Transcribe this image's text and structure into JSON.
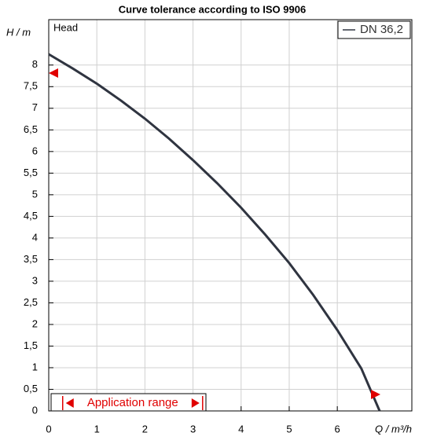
{
  "chart_data": {
    "type": "line",
    "title": "Curve tolerance according to ISO 9906",
    "y_label": "H / m",
    "x_label": "Q / m³/h",
    "curve_label": "Head",
    "annotation": "Application range",
    "application_range": [
      0.29,
      3.2
    ],
    "legend": "upper right",
    "grid": true,
    "xlim": [
      0,
      7.55
    ],
    "ylim": [
      0,
      9.05
    ],
    "xticks": [
      0,
      1,
      2,
      3,
      4,
      5,
      6
    ],
    "yticks": [
      0,
      {
        "value": 0.5,
        "label": "0,5"
      },
      1,
      {
        "value": 1.5,
        "label": "1,5"
      },
      2,
      {
        "value": 2.5,
        "label": "2,5"
      },
      3,
      {
        "value": 3.5,
        "label": "3,5"
      },
      4,
      {
        "value": 4.5,
        "label": "4,5"
      },
      5,
      {
        "value": 5.5,
        "label": "5,5"
      },
      6,
      {
        "value": 6.5,
        "label": "6,5"
      },
      7,
      {
        "value": 7.5,
        "label": "7,5"
      },
      8
    ],
    "x": [
      0,
      0.5,
      1,
      1.5,
      2,
      2.5,
      3,
      3.5,
      4,
      4.5,
      5,
      5.5,
      6,
      6.5,
      6.88
    ],
    "series": [
      {
        "name": "DN 36,2",
        "color": "#2f3440",
        "values": [
          8.25,
          7.92,
          7.57,
          7.18,
          6.76,
          6.3,
          5.8,
          5.27,
          4.7,
          4.08,
          3.42,
          2.68,
          1.87,
          0.98,
          0
        ]
      }
    ]
  }
}
